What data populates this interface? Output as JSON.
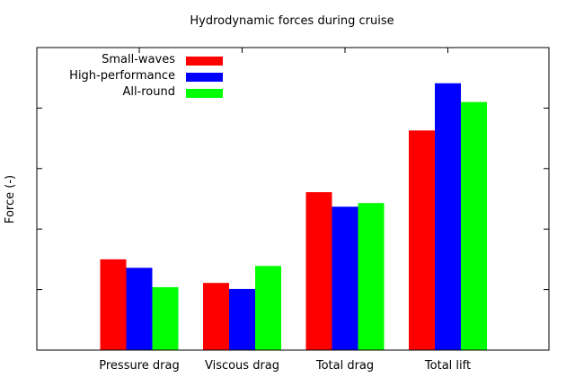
{
  "chart_data": {
    "type": "bar",
    "title": "Hydrodynamic forces during cruise",
    "xlabel": "",
    "ylabel": "Force (-)",
    "categories": [
      "Pressure drag",
      "Viscous drag",
      "Total drag",
      "Total lift"
    ],
    "series": [
      {
        "name": "Small-waves",
        "color": "#ff0000",
        "values": [
          1.5,
          1.11,
          2.61,
          3.63
        ]
      },
      {
        "name": "High-performance",
        "color": "#0000ff",
        "values": [
          1.36,
          1.01,
          2.37,
          4.41
        ]
      },
      {
        "name": "All-round",
        "color": "#00ff00",
        "values": [
          1.04,
          1.39,
          2.43,
          4.1
        ]
      }
    ],
    "ylim": [
      0,
      5
    ],
    "y_tick_labels_shown": false,
    "grid": false,
    "legend_position": "top-left"
  }
}
